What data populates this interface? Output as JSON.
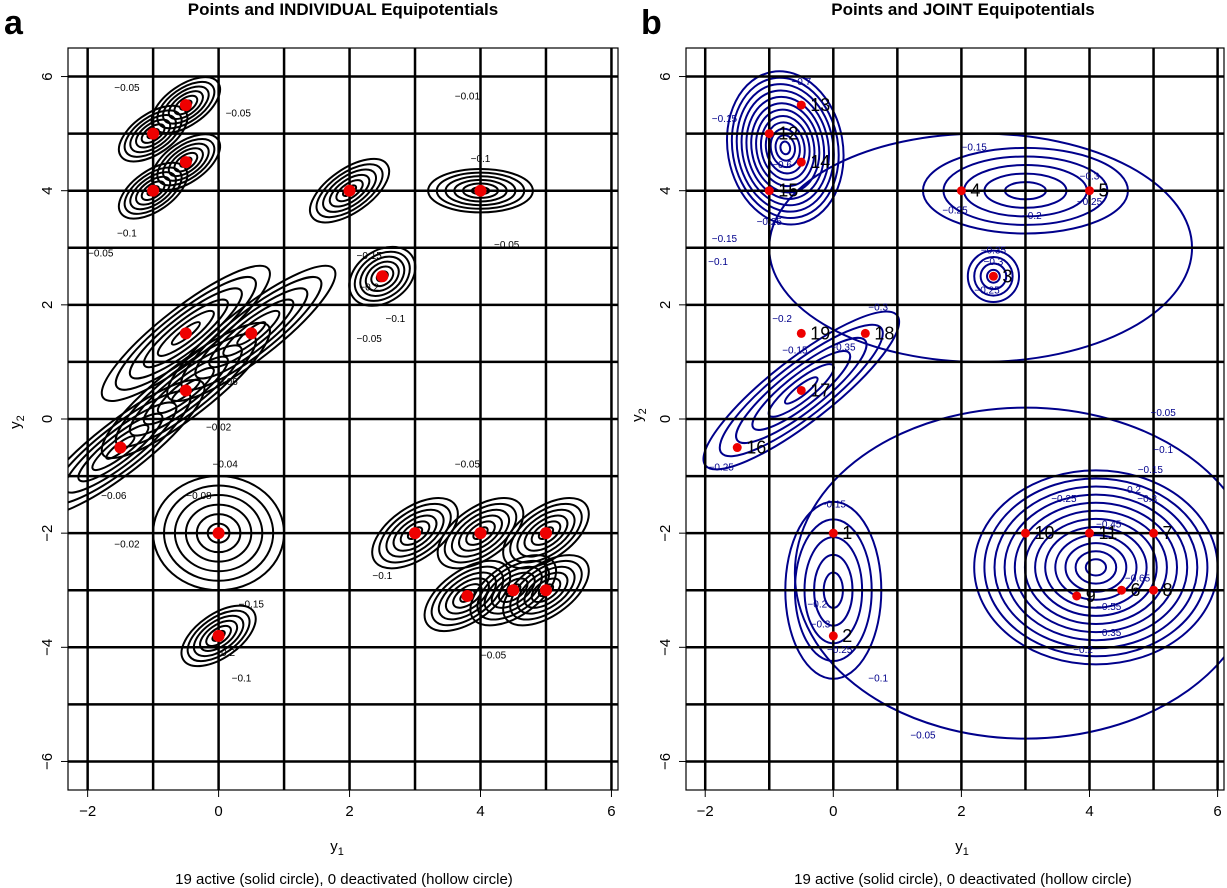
{
  "figure": {
    "panel_a_label": "a",
    "panel_b_label": "b"
  },
  "chart_data": [
    {
      "type": "contour",
      "panel": "a",
      "title": "Points and INDIVIDUAL Equipotentials",
      "xlabel": "y",
      "xlabel_sub": "1",
      "ylabel": "y",
      "ylabel_sub": "2",
      "xlim": [
        -2.3,
        6.1
      ],
      "ylim": [
        -6.5,
        6.5
      ],
      "xticks": [
        -2,
        0,
        2,
        4,
        6
      ],
      "yticks": [
        -6,
        -4,
        -2,
        0,
        2,
        4,
        6
      ],
      "grid_x": [
        -2,
        -1,
        0,
        1,
        2,
        3,
        4,
        5,
        6
      ],
      "grid_y": [
        -6,
        -5,
        -4,
        -3,
        -2,
        -1,
        0,
        1,
        2,
        3,
        4,
        5,
        6
      ],
      "grid": true,
      "caption": "19 active (solid circle), 0 deactivated (hollow circle)",
      "contour_color": "#000000",
      "point_color": "#ee0000",
      "points": [
        {
          "id": 1,
          "x": 0,
          "y": -2
        },
        {
          "id": 2,
          "x": 0,
          "y": -3.8
        },
        {
          "id": 3,
          "x": 2.5,
          "y": 2.5
        },
        {
          "id": 4,
          "x": 2,
          "y": 4
        },
        {
          "id": 5,
          "x": 4,
          "y": 4
        },
        {
          "id": 6,
          "x": 4.5,
          "y": -3
        },
        {
          "id": 7,
          "x": 5,
          "y": -2
        },
        {
          "id": 8,
          "x": 5,
          "y": -3
        },
        {
          "id": 9,
          "x": 3.8,
          "y": -3.1
        },
        {
          "id": 10,
          "x": 3,
          "y": -2
        },
        {
          "id": 11,
          "x": 4,
          "y": -2
        },
        {
          "id": 12,
          "x": -1,
          "y": 5
        },
        {
          "id": 13,
          "x": -0.5,
          "y": 5.5
        },
        {
          "id": 14,
          "x": -0.5,
          "y": 4.5
        },
        {
          "id": 15,
          "x": -1,
          "y": 4
        },
        {
          "id": 16,
          "x": -1.5,
          "y": -0.5
        },
        {
          "id": 17,
          "x": -0.5,
          "y": 0.5
        },
        {
          "id": 18,
          "x": 0.5,
          "y": 1.5
        },
        {
          "id": 19,
          "x": -0.5,
          "y": 1.5
        }
      ],
      "contour_labels": [
        {
          "text": "−0.01",
          "x": 3.8,
          "y": 5.6
        },
        {
          "text": "−0.05",
          "x": -1.8,
          "y": 2.85
        },
        {
          "text": "−0.1",
          "x": -1.4,
          "y": 3.2
        },
        {
          "text": "−0.02",
          "x": 0,
          "y": -0.2
        },
        {
          "text": "−0.04",
          "x": 0.1,
          "y": -0.85
        },
        {
          "text": "−0.06",
          "x": -1.6,
          "y": -1.4
        },
        {
          "text": "−0.08",
          "x": -0.3,
          "y": -1.4
        },
        {
          "text": "−0.05",
          "x": 2.3,
          "y": 1.35
        },
        {
          "text": "−0.06",
          "x": 0.1,
          "y": 0.6
        },
        {
          "text": "−0.05",
          "x": 3.8,
          "y": -0.85
        },
        {
          "text": "−0.05",
          "x": 4.2,
          "y": -4.2
        },
        {
          "text": "−0.1",
          "x": 0.35,
          "y": -4.6
        },
        {
          "text": "−0.1",
          "x": 4,
          "y": 4.5
        },
        {
          "text": "−0.05",
          "x": 4.4,
          "y": 3.0
        },
        {
          "text": "−0.2",
          "x": 2.3,
          "y": 2.25
        },
        {
          "text": "−0.1",
          "x": 2.7,
          "y": 1.7
        },
        {
          "text": "−0.15",
          "x": 2.3,
          "y": 2.8
        },
        {
          "text": "−0.1",
          "x": 2.5,
          "y": -2.8
        },
        {
          "text": "−0.05",
          "x": -1.4,
          "y": 5.75
        },
        {
          "text": "−0.05",
          "x": 0.3,
          "y": 5.3
        },
        {
          "text": "−0.02",
          "x": -1.4,
          "y": -2.25
        },
        {
          "text": "−0.15",
          "x": 0.5,
          "y": -3.3
        },
        {
          "text": "−0.2",
          "x": 0.1,
          "y": -4.15
        }
      ]
    },
    {
      "type": "contour",
      "panel": "b",
      "title": "Points and JOINT Equipotentials",
      "xlabel": "y",
      "xlabel_sub": "1",
      "ylabel": "y",
      "ylabel_sub": "2",
      "xlim": [
        -2.3,
        6.1
      ],
      "ylim": [
        -6.5,
        6.5
      ],
      "xticks": [
        -2,
        0,
        2,
        4,
        6
      ],
      "yticks": [
        -6,
        -4,
        -2,
        0,
        2,
        4,
        6
      ],
      "grid_x": [
        -2,
        -1,
        0,
        1,
        2,
        3,
        4,
        5,
        6
      ],
      "grid_y": [
        -6,
        -5,
        -4,
        -3,
        -2,
        -1,
        0,
        1,
        2,
        3,
        4,
        5,
        6
      ],
      "grid": true,
      "caption": "19 active (solid circle), 0 deactivated (hollow circle)",
      "contour_color": "#00008b",
      "point_color": "#ee0000",
      "points": [
        {
          "id": 1,
          "x": 0,
          "y": -2
        },
        {
          "id": 2,
          "x": 0,
          "y": -3.8
        },
        {
          "id": 3,
          "x": 2.5,
          "y": 2.5
        },
        {
          "id": 4,
          "x": 2,
          "y": 4
        },
        {
          "id": 5,
          "x": 4,
          "y": 4
        },
        {
          "id": 6,
          "x": 4.5,
          "y": -3
        },
        {
          "id": 7,
          "x": 5,
          "y": -2
        },
        {
          "id": 8,
          "x": 5,
          "y": -3
        },
        {
          "id": 9,
          "x": 3.8,
          "y": -3.1
        },
        {
          "id": 10,
          "x": 3,
          "y": -2
        },
        {
          "id": 11,
          "x": 4,
          "y": -2
        },
        {
          "id": 12,
          "x": -1,
          "y": 5
        },
        {
          "id": 13,
          "x": -0.5,
          "y": 5.5
        },
        {
          "id": 14,
          "x": -0.5,
          "y": 4.5
        },
        {
          "id": 15,
          "x": -1,
          "y": 4
        },
        {
          "id": 16,
          "x": -1.5,
          "y": -0.5
        },
        {
          "id": 17,
          "x": -0.5,
          "y": 0.5
        },
        {
          "id": 18,
          "x": 0.5,
          "y": 1.5
        },
        {
          "id": 19,
          "x": -0.5,
          "y": 1.5
        }
      ],
      "contour_labels": [
        {
          "text": "−0.05",
          "x": 5.15,
          "y": 0.05
        },
        {
          "text": "−0.1",
          "x": 5.15,
          "y": -0.6
        },
        {
          "text": "−0.15",
          "x": 4.95,
          "y": -0.95
        },
        {
          "text": "−0.2",
          "x": 4.65,
          "y": -1.3
        },
        {
          "text": "−0.25",
          "x": 3.6,
          "y": -1.45
        },
        {
          "text": "−0.3",
          "x": 4.9,
          "y": -1.45
        },
        {
          "text": "−0.45",
          "x": 4.3,
          "y": -1.9
        },
        {
          "text": "−0.65",
          "x": 4.75,
          "y": -2.85
        },
        {
          "text": "−0.55",
          "x": 4.3,
          "y": -3.35
        },
        {
          "text": "−0.35",
          "x": 4.3,
          "y": -3.8
        },
        {
          "text": "−0.2",
          "x": 3.9,
          "y": -4.1
        },
        {
          "text": "−0.05",
          "x": 1.4,
          "y": -5.6
        },
        {
          "text": "−0.1",
          "x": 0.7,
          "y": -4.6
        },
        {
          "text": "−0.15",
          "x": 0,
          "y": -1.55
        },
        {
          "text": "−0.2",
          "x": -0.25,
          "y": -3.3
        },
        {
          "text": "−0.3",
          "x": -0.2,
          "y": -3.65
        },
        {
          "text": "−0.25",
          "x": 0.1,
          "y": -4.1
        },
        {
          "text": "−0.15",
          "x": 2.2,
          "y": 4.7
        },
        {
          "text": "−0.2",
          "x": 3.1,
          "y": 3.5
        },
        {
          "text": "−0.25",
          "x": 4,
          "y": 3.75
        },
        {
          "text": "−0.3",
          "x": 4,
          "y": 4.2
        },
        {
          "text": "−0.25",
          "x": 1.9,
          "y": 3.6
        },
        {
          "text": "−0.3",
          "x": 2.5,
          "y": 2.7
        },
        {
          "text": "−0.25",
          "x": 2.4,
          "y": 2.2
        },
        {
          "text": "−0.35",
          "x": 2.5,
          "y": 2.9
        },
        {
          "text": "−0.1",
          "x": -1.8,
          "y": 2.7
        },
        {
          "text": "−0.15",
          "x": -1.7,
          "y": 3.1
        },
        {
          "text": "−0.25",
          "x": -1.0,
          "y": 3.4
        },
        {
          "text": "−0.15",
          "x": -1.7,
          "y": 5.2
        },
        {
          "text": "−0.6",
          "x": -0.8,
          "y": 4.4
        },
        {
          "text": "−0.7",
          "x": -0.5,
          "y": 5.85
        },
        {
          "text": "−0.15",
          "x": -0.6,
          "y": 1.15
        },
        {
          "text": "−0.25",
          "x": -1.75,
          "y": -0.9
        },
        {
          "text": "−0.3",
          "x": 0.7,
          "y": 1.9
        },
        {
          "text": "−0.35",
          "x": 0.15,
          "y": 1.2
        },
        {
          "text": "−0.2",
          "x": -0.8,
          "y": 1.7
        }
      ]
    }
  ]
}
